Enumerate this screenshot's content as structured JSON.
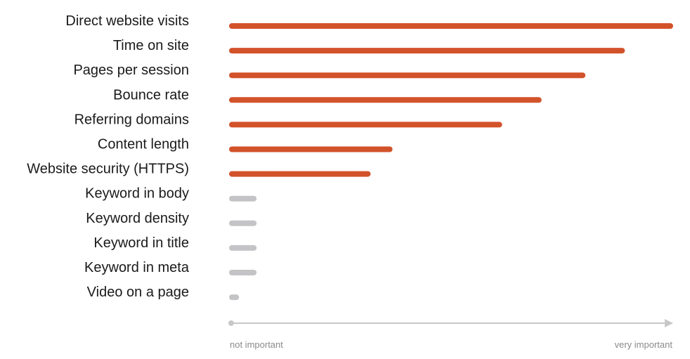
{
  "chart_data": {
    "type": "bar",
    "orientation": "horizontal",
    "categories": [
      "Direct website visits",
      "Time on site",
      "Pages per session",
      "Bounce rate",
      "Referring domains",
      "Content length",
      "Website security (HTTPS)",
      "Keyword in body",
      "Keyword density",
      "Keyword in title",
      "Keyword in meta",
      "Video on a page"
    ],
    "values": [
      100,
      89,
      80,
      70,
      61,
      36,
      31,
      5,
      5,
      5,
      5,
      1
    ],
    "highlighted": [
      true,
      true,
      true,
      true,
      true,
      true,
      true,
      false,
      false,
      false,
      false,
      false
    ],
    "xlim": [
      0,
      100
    ],
    "axis": {
      "min_label": "not important",
      "max_label": "very important"
    },
    "colors": {
      "highlight": "#d2522a",
      "muted": "#c4c4c6",
      "axis": "#c8c8c8"
    },
    "grid": false,
    "legend": "none"
  }
}
